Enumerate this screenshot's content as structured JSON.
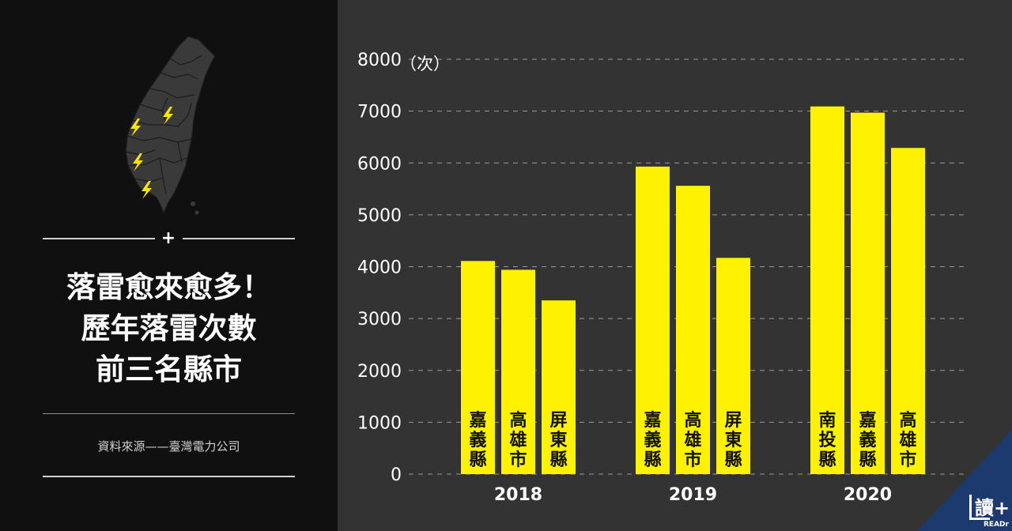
{
  "headline": {
    "line1": "落雷愈來愈多！",
    "line2": "歷年落雷次數",
    "line3": "前三名縣市"
  },
  "source_note": "資料來源——臺灣電力公司",
  "plus_symbol": "+",
  "brand": {
    "name": "讀+",
    "sub": "READr"
  },
  "icons": {
    "map": "taiwan-map-icon",
    "lightning": "lightning-bolt-icon"
  },
  "colors": {
    "bar": "#fff200",
    "lightning": "#ffe500",
    "chart_background": "#333333",
    "panel_background": "#101010",
    "badge": "#1c3a6e"
  },
  "chart_data": {
    "type": "bar",
    "title": "",
    "xlabel": "",
    "ylabel": "（次）",
    "ylim": [
      0,
      8000
    ],
    "yticks": [
      0,
      1000,
      2000,
      3000,
      4000,
      5000,
      6000,
      7000,
      8000
    ],
    "grid": true,
    "groups": [
      {
        "year": "2018",
        "bars": [
          {
            "label": "嘉義縣",
            "value": 4110
          },
          {
            "label": "高雄市",
            "value": 3940
          },
          {
            "label": "屏東縣",
            "value": 3350
          }
        ]
      },
      {
        "year": "2019",
        "bars": [
          {
            "label": "嘉義縣",
            "value": 5930
          },
          {
            "label": "高雄市",
            "value": 5560
          },
          {
            "label": "屏東縣",
            "value": 4170
          }
        ]
      },
      {
        "year": "2020",
        "bars": [
          {
            "label": "南投縣",
            "value": 7090
          },
          {
            "label": "嘉義縣",
            "value": 6970
          },
          {
            "label": "高雄市",
            "value": 6290
          }
        ]
      }
    ]
  }
}
